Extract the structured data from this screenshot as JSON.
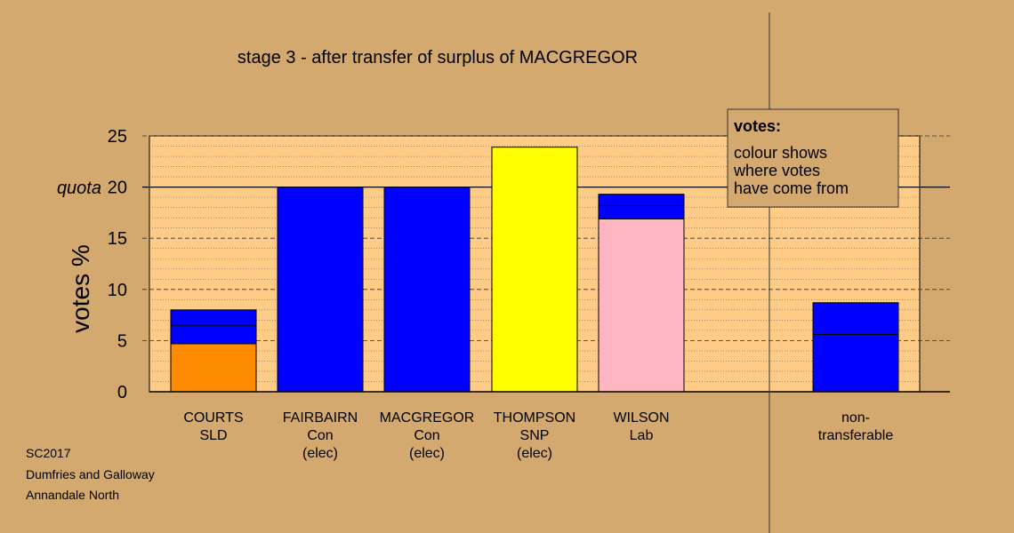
{
  "chart_data": {
    "type": "bar",
    "title": "stage 3 - after transfer of surplus of MACGREGOR",
    "ylabel": "votes %",
    "ylim": [
      0,
      25
    ],
    "yticks": [
      0,
      5,
      10,
      15,
      20,
      25
    ],
    "quota": 20,
    "quota_label": "quota",
    "grid": true,
    "categories": [
      {
        "lines": [
          "COURTS",
          "SLD"
        ],
        "segments": [
          {
            "value": 4.7,
            "color": "#ff8c00"
          },
          {
            "value": 1.8,
            "color": "#0000ff"
          },
          {
            "value": 1.5,
            "color": "#0000ff"
          }
        ]
      },
      {
        "lines": [
          "FAIRBAIRN",
          "Con",
          "(elec)"
        ],
        "segments": [
          {
            "value": 20.0,
            "color": "#0000ff"
          }
        ]
      },
      {
        "lines": [
          "MACGREGOR",
          "Con",
          "(elec)"
        ],
        "segments": [
          {
            "value": 20.0,
            "color": "#0000ff"
          }
        ]
      },
      {
        "lines": [
          "THOMPSON",
          "SNP",
          "(elec)"
        ],
        "segments": [
          {
            "value": 23.9,
            "color": "#ffff00"
          }
        ]
      },
      {
        "lines": [
          "WILSON",
          "Lab"
        ],
        "segments": [
          {
            "value": 16.9,
            "color": "#ffb6c1"
          },
          {
            "value": 1.3,
            "color": "#0000ff"
          },
          {
            "value": 1.1,
            "color": "#0000ff"
          }
        ]
      },
      {
        "lines": [
          "non-",
          "transferable"
        ],
        "segments": [
          {
            "value": 5.6,
            "color": "#0000ff"
          },
          {
            "value": 3.1,
            "color": "#0000ff"
          }
        ]
      }
    ],
    "legend": {
      "heading": "votes:",
      "lines": [
        "colour shows",
        "where votes",
        "have come from"
      ],
      "position": "top-right"
    }
  },
  "info": [
    "SC2017",
    "Dumfries and Galloway",
    "Annandale North"
  ],
  "colors": {
    "background": "#d4a96f",
    "plot_background": "#ffcc88"
  }
}
